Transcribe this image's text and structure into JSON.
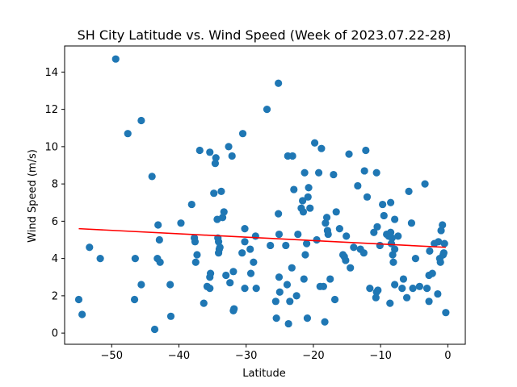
{
  "chart_data": {
    "type": "scatter",
    "title": "SH City Latitude vs. Wind Speed (Week of 2023.07.22-28)",
    "xlabel": "Latitude",
    "ylabel": "Wind Speed (m/s)",
    "xlim": [
      -57,
      2.6
    ],
    "ylim": [
      -0.6,
      15.4
    ],
    "xticks": [
      -50,
      -40,
      -30,
      -20,
      -10,
      0
    ],
    "yticks": [
      0,
      2,
      4,
      6,
      8,
      10,
      12,
      14
    ],
    "xtick_labels": [
      "−50",
      "−40",
      "−30",
      "−20",
      "−10",
      "0"
    ],
    "ytick_labels": [
      "0",
      "2",
      "4",
      "6",
      "8",
      "10",
      "12",
      "14"
    ],
    "grid": false,
    "marker_color": "#1f77b4",
    "regression_color": "#ff0000",
    "points": [
      [
        -49.4,
        14.7
      ],
      [
        -47.6,
        10.7
      ],
      [
        -45.6,
        11.4
      ],
      [
        -44,
        8.4
      ],
      [
        -54.9,
        1.8
      ],
      [
        -54.4,
        1.0
      ],
      [
        -53.3,
        4.6
      ],
      [
        -51.7,
        4.0
      ],
      [
        -46.5,
        4.0
      ],
      [
        -46.6,
        1.8
      ],
      [
        -45.6,
        2.6
      ],
      [
        -43.6,
        0.2
      ],
      [
        -43.1,
        5.8
      ],
      [
        -42.9,
        5.0
      ],
      [
        -43.2,
        4.0
      ],
      [
        -42.8,
        3.8
      ],
      [
        -41.2,
        0.9
      ],
      [
        -41.3,
        2.6
      ],
      [
        -39.7,
        5.9
      ],
      [
        -38.1,
        6.9
      ],
      [
        -37.7,
        5.1
      ],
      [
        -37.6,
        4.9
      ],
      [
        -37.5,
        3.8
      ],
      [
        -37.3,
        4.2
      ],
      [
        -36.9,
        9.8
      ],
      [
        -36.3,
        1.6
      ],
      [
        -35.8,
        2.5
      ],
      [
        -35.4,
        2.4
      ],
      [
        -35.4,
        3.0
      ],
      [
        -35.3,
        3.2
      ],
      [
        -35.4,
        9.7
      ],
      [
        -34.8,
        7.5
      ],
      [
        -34.6,
        9.1
      ],
      [
        -34.5,
        9.4
      ],
      [
        -34.3,
        6.1
      ],
      [
        -34.2,
        5.1
      ],
      [
        -34.1,
        4.9
      ],
      [
        -34,
        4.5
      ],
      [
        -34.1,
        4.3
      ],
      [
        -33.9,
        4.6
      ],
      [
        -33.7,
        7.6
      ],
      [
        -33.5,
        6.2
      ],
      [
        -33.3,
        6.5
      ],
      [
        -33,
        3.1
      ],
      [
        -32.6,
        10.0
      ],
      [
        -32.1,
        9.5
      ],
      [
        -32.4,
        2.7
      ],
      [
        -31.9,
        1.2
      ],
      [
        -31.9,
        3.3
      ],
      [
        -31.8,
        1.3
      ],
      [
        -30.5,
        10.7
      ],
      [
        -30.6,
        4.3
      ],
      [
        -30.2,
        5.6
      ],
      [
        -30.2,
        4.9
      ],
      [
        -30.2,
        2.4
      ],
      [
        -29.3,
        3.2
      ],
      [
        -29.4,
        4.5
      ],
      [
        -28.9,
        3.8
      ],
      [
        -28.6,
        5.2
      ],
      [
        -28.5,
        2.4
      ],
      [
        -26.9,
        12.0
      ],
      [
        -26.4,
        4.7
      ],
      [
        -25.5,
        0.8
      ],
      [
        -25.6,
        1.7
      ],
      [
        -25.2,
        13.4
      ],
      [
        -25.2,
        6.4
      ],
      [
        -25.1,
        5.3
      ],
      [
        -25.1,
        3.0
      ],
      [
        -25,
        2.2
      ],
      [
        -24.1,
        4.7
      ],
      [
        -23.8,
        9.5
      ],
      [
        -23.9,
        2.6
      ],
      [
        -23.7,
        0.5
      ],
      [
        -23.5,
        1.7
      ],
      [
        -23.2,
        3.5
      ],
      [
        -23.1,
        9.5
      ],
      [
        -22.9,
        7.7
      ],
      [
        -22.5,
        2.0
      ],
      [
        -22.3,
        5.3
      ],
      [
        -21.8,
        6.7
      ],
      [
        -21.6,
        7.1
      ],
      [
        -21.5,
        6.5
      ],
      [
        -21.4,
        2.9
      ],
      [
        -21.3,
        8.6
      ],
      [
        -21.2,
        4.2
      ],
      [
        -21,
        4.8
      ],
      [
        -20.9,
        0.8
      ],
      [
        -20.8,
        7.3
      ],
      [
        -20.7,
        7.8
      ],
      [
        -20.5,
        6.7
      ],
      [
        -19.8,
        10.2
      ],
      [
        -19.5,
        5.0
      ],
      [
        -19.2,
        8.6
      ],
      [
        -19,
        2.5
      ],
      [
        -18.8,
        9.9
      ],
      [
        -18.5,
        2.5
      ],
      [
        -18.3,
        0.6
      ],
      [
        -18.2,
        5.9
      ],
      [
        -18,
        6.2
      ],
      [
        -17.9,
        5.5
      ],
      [
        -17.8,
        5.3
      ],
      [
        -17.5,
        2.9
      ],
      [
        -17,
        8.5
      ],
      [
        -16.8,
        1.8
      ],
      [
        -16.6,
        6.5
      ],
      [
        -16.1,
        5.6
      ],
      [
        -15.6,
        4.2
      ],
      [
        -15.4,
        4.1
      ],
      [
        -15.2,
        3.9
      ],
      [
        -15.1,
        5.2
      ],
      [
        -14.7,
        9.6
      ],
      [
        -14.5,
        3.5
      ],
      [
        -14,
        4.6
      ],
      [
        -13.4,
        7.9
      ],
      [
        -13,
        4.5
      ],
      [
        -12.5,
        4.3
      ],
      [
        -12.4,
        8.7
      ],
      [
        -12.2,
        9.8
      ],
      [
        -12,
        7.3
      ],
      [
        -11.6,
        2.4
      ],
      [
        -11,
        5.4
      ],
      [
        -10.6,
        8.6
      ],
      [
        -10.5,
        5.7
      ],
      [
        -10.6,
        2.2
      ],
      [
        -10.7,
        1.9
      ],
      [
        -10.4,
        2.3
      ],
      [
        -10.1,
        4.7
      ],
      [
        -9.7,
        6.9
      ],
      [
        -9.5,
        6.3
      ],
      [
        -9.1,
        5.3
      ],
      [
        -8.8,
        5.2
      ],
      [
        -8.6,
        1.6
      ],
      [
        -8.5,
        5.4
      ],
      [
        -8.5,
        7.0
      ],
      [
        -8.4,
        4.8
      ],
      [
        -8.3,
        5.1
      ],
      [
        -8.2,
        4.2
      ],
      [
        -8.1,
        3.8
      ],
      [
        -7.9,
        4.5
      ],
      [
        -7.9,
        6.1
      ],
      [
        -7.9,
        2.6
      ],
      [
        -7.4,
        5.2
      ],
      [
        -6.8,
        2.4
      ],
      [
        -6.6,
        2.9
      ],
      [
        -6.1,
        1.9
      ],
      [
        -5.8,
        7.6
      ],
      [
        -5.4,
        5.9
      ],
      [
        -5.2,
        2.4
      ],
      [
        -4.8,
        4.0
      ],
      [
        -4.2,
        2.5
      ],
      [
        -3.4,
        8.0
      ],
      [
        -3.1,
        2.4
      ],
      [
        -2.8,
        1.7
      ],
      [
        -2.8,
        3.1
      ],
      [
        -2.7,
        4.4
      ],
      [
        -2.3,
        3.2
      ],
      [
        -2,
        4.8
      ],
      [
        -1.5,
        2.1
      ],
      [
        -1.4,
        4.9
      ],
      [
        -1.2,
        4.0
      ],
      [
        -1.1,
        3.8
      ],
      [
        -1,
        5.5
      ],
      [
        -0.8,
        5.8
      ],
      [
        -0.7,
        4.2
      ],
      [
        -0.6,
        4.3
      ],
      [
        -0.5,
        4.8
      ],
      [
        -0.3,
        1.1
      ]
    ],
    "regression": {
      "x": [
        -54.9,
        -0.3
      ],
      "y": [
        5.6,
        4.6
      ]
    }
  }
}
